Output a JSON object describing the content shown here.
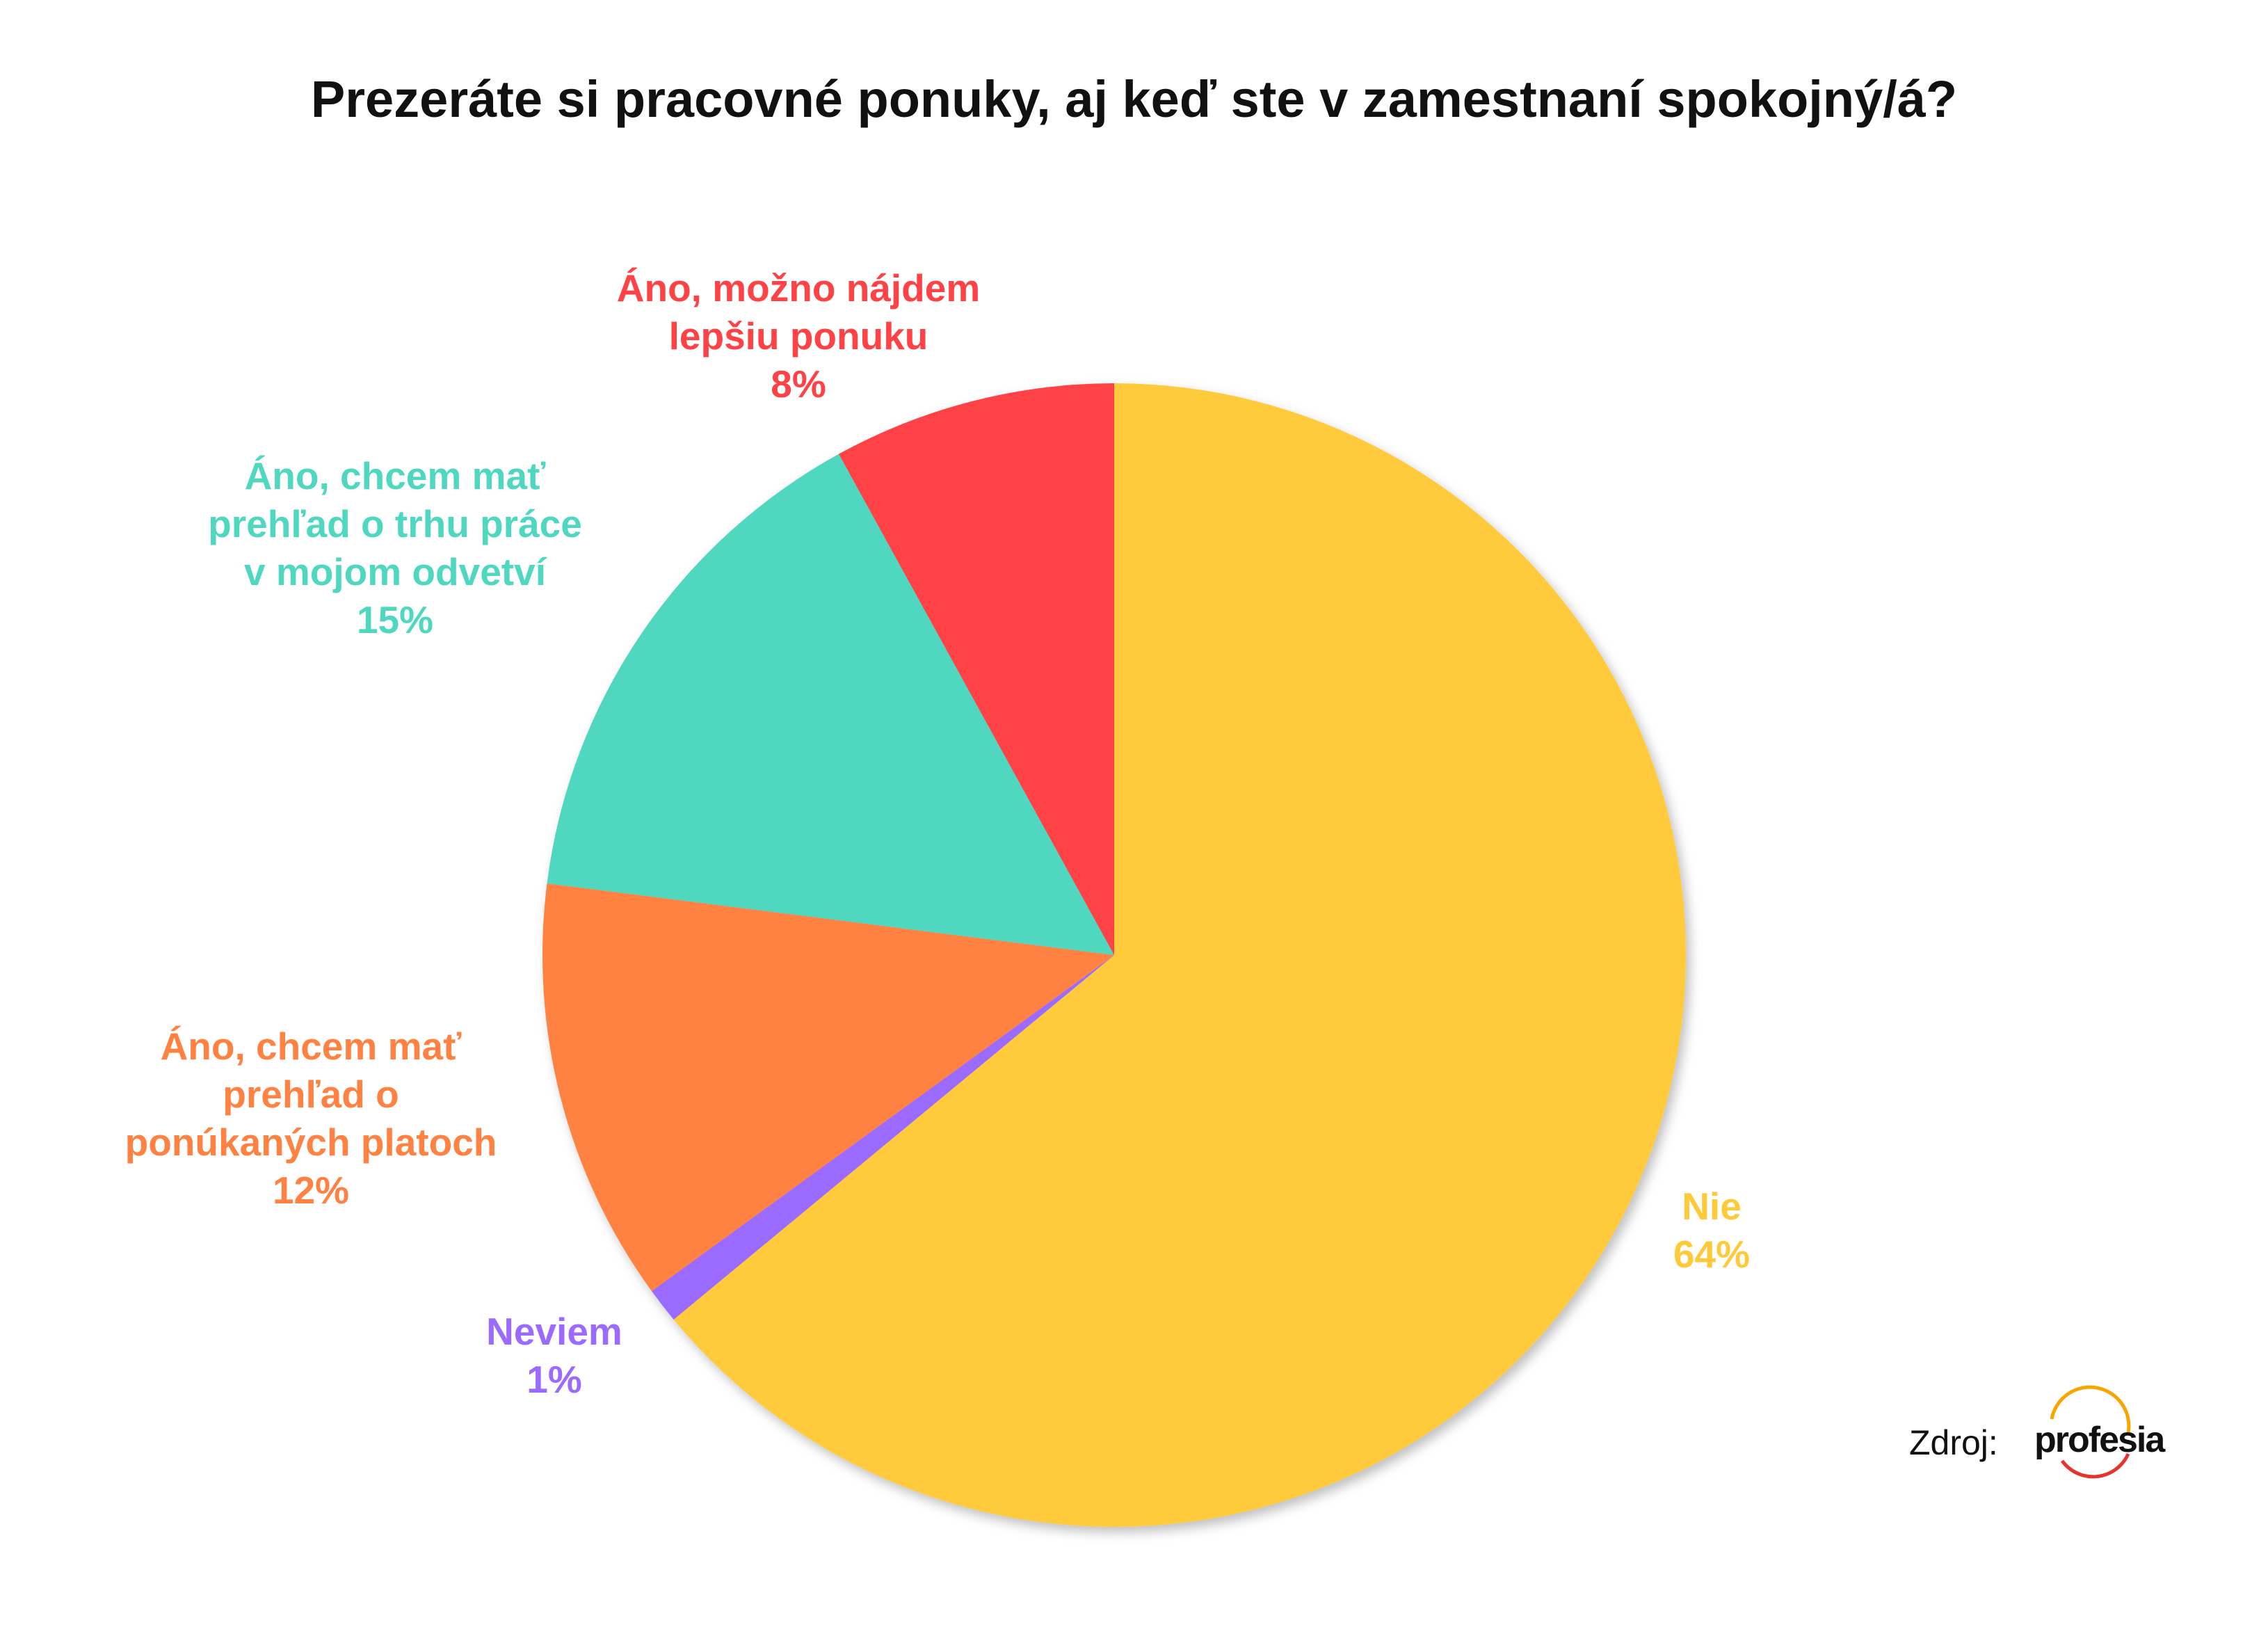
{
  "chart_data": {
    "type": "pie",
    "title": "Prezeráte si pracovné ponuky, aj keď ste v zamestnaní spokojný/á?",
    "categories": [
      "Nie",
      "Neviem",
      "Áno, chcem mať\nprehľad o\nponúkaných platoch",
      "Áno, chcem mať\nprehľad o trhu práce\nv mojom odvetví",
      "Áno, možno nájdem\nlepšiu ponuku"
    ],
    "values": [
      64,
      1,
      12,
      15,
      8
    ],
    "value_labels": [
      "64%",
      "1%",
      "12%",
      "15%",
      "8%"
    ],
    "colors": [
      "#FFCA3A",
      "#9B6BFF",
      "#FF8243",
      "#4FD8BF",
      "#FF4245"
    ],
    "source": "Zdroj:",
    "logo": "profesia"
  }
}
